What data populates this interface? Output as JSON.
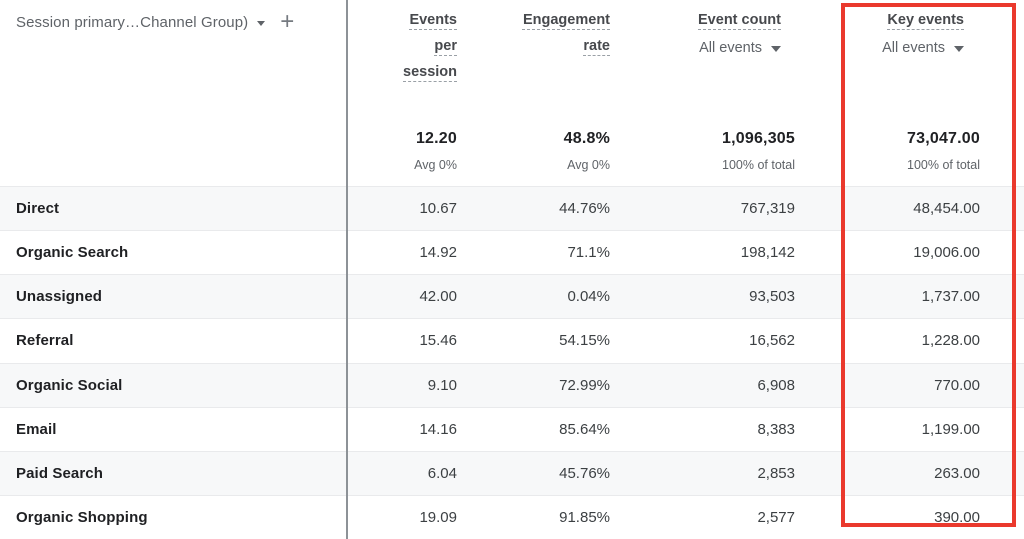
{
  "colors": {
    "highlight_box": "#ea392d",
    "alt_row": "#f7f8f9"
  },
  "icons": {
    "add": "+",
    "dropdown_caret": "caret-down"
  },
  "dimension_header": {
    "label": "Session primary…Channel Group)"
  },
  "columns": [
    {
      "label": "Events per session",
      "summary": "12.20",
      "summary_sub": "Avg 0%"
    },
    {
      "label": "Engagement rate",
      "summary": "48.8%",
      "summary_sub": "Avg 0%"
    },
    {
      "label": "Event count",
      "filter": "All events",
      "summary": "1,096,305",
      "summary_sub": "100% of total"
    },
    {
      "label": "Key events",
      "filter": "All events",
      "summary": "73,047.00",
      "summary_sub": "100% of total",
      "highlighted": true
    }
  ],
  "rows": [
    {
      "channel": "Direct",
      "events_per_session": "10.67",
      "engagement_rate": "44.76%",
      "event_count": "767,319",
      "key_events": "48,454.00"
    },
    {
      "channel": "Organic Search",
      "events_per_session": "14.92",
      "engagement_rate": "71.1%",
      "event_count": "198,142",
      "key_events": "19,006.00"
    },
    {
      "channel": "Unassigned",
      "events_per_session": "42.00",
      "engagement_rate": "0.04%",
      "event_count": "93,503",
      "key_events": "1,737.00"
    },
    {
      "channel": "Referral",
      "events_per_session": "15.46",
      "engagement_rate": "54.15%",
      "event_count": "16,562",
      "key_events": "1,228.00"
    },
    {
      "channel": "Organic Social",
      "events_per_session": "9.10",
      "engagement_rate": "72.99%",
      "event_count": "6,908",
      "key_events": "770.00"
    },
    {
      "channel": "Email",
      "events_per_session": "14.16",
      "engagement_rate": "85.64%",
      "event_count": "8,383",
      "key_events": "1,199.00"
    },
    {
      "channel": "Paid Search",
      "events_per_session": "6.04",
      "engagement_rate": "45.76%",
      "event_count": "2,853",
      "key_events": "263.00"
    },
    {
      "channel": "Organic Shopping",
      "events_per_session": "19.09",
      "engagement_rate": "91.85%",
      "event_count": "2,577",
      "key_events": "390.00"
    }
  ]
}
